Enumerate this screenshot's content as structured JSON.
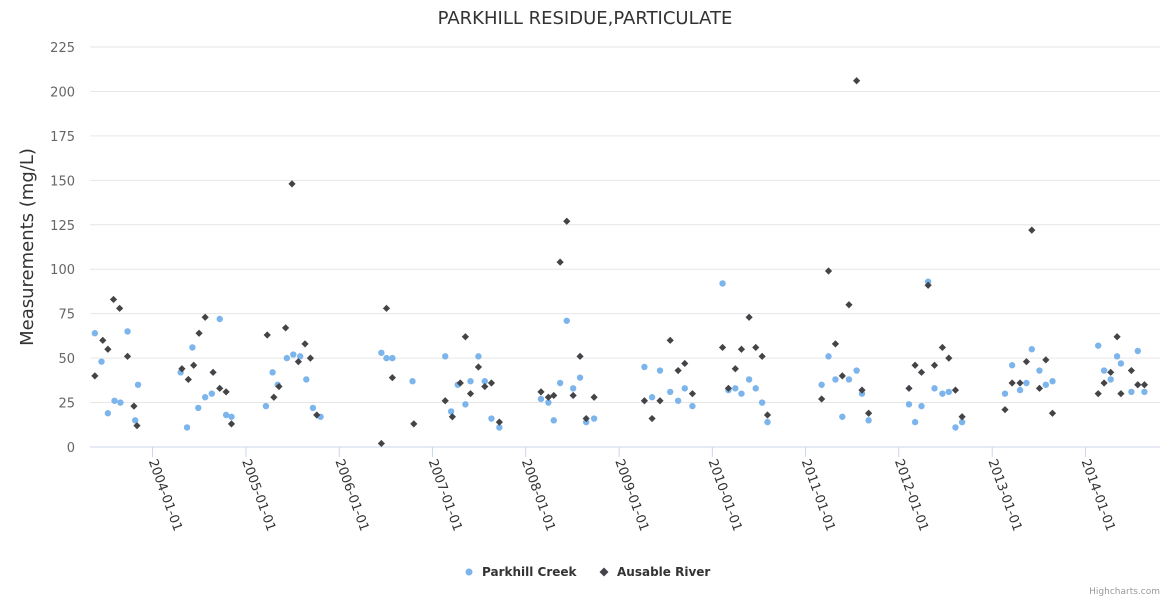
{
  "chart_data": {
    "type": "scatter",
    "title": "PARKHILL RESIDUE,PARTICULATE",
    "ylabel": "Measurements (mg/L)",
    "xlabel": "",
    "ylim": [
      0,
      225
    ],
    "xlim": [
      "2003-05-01",
      "2014-10-20"
    ],
    "x_axis_type": "datetime",
    "yticks": [
      0,
      25,
      50,
      75,
      100,
      125,
      150,
      175,
      200,
      225
    ],
    "xticks": [
      "2004-01-01",
      "2005-01-01",
      "2006-01-01",
      "2007-01-01",
      "2008-01-01",
      "2009-01-01",
      "2010-01-01",
      "2011-01-01",
      "2012-01-01",
      "2013-01-01",
      "2014-01-01"
    ],
    "grid": true,
    "legend_position": "bottom-center",
    "series": [
      {
        "name": "Parkhill Creek",
        "color": "#7cb5ec",
        "marker": "circle",
        "points": [
          [
            "2003-05-20",
            64
          ],
          [
            "2003-06-15",
            48
          ],
          [
            "2003-07-10",
            19
          ],
          [
            "2003-08-05",
            26
          ],
          [
            "2003-08-28",
            25
          ],
          [
            "2003-09-25",
            65
          ],
          [
            "2003-10-25",
            15
          ],
          [
            "2003-11-05",
            35
          ],
          [
            "2004-04-20",
            42
          ],
          [
            "2004-05-15",
            11
          ],
          [
            "2004-06-05",
            56
          ],
          [
            "2004-06-28",
            22
          ],
          [
            "2004-07-25",
            28
          ],
          [
            "2004-08-20",
            30
          ],
          [
            "2004-09-20",
            72
          ],
          [
            "2004-10-15",
            18
          ],
          [
            "2004-11-05",
            17
          ],
          [
            "2005-03-20",
            23
          ],
          [
            "2005-04-15",
            42
          ],
          [
            "2005-05-05",
            35
          ],
          [
            "2005-06-10",
            50
          ],
          [
            "2005-07-05",
            52
          ],
          [
            "2005-08-01",
            51
          ],
          [
            "2005-08-25",
            38
          ],
          [
            "2005-09-20",
            22
          ],
          [
            "2005-10-20",
            17
          ],
          [
            "2006-06-15",
            53
          ],
          [
            "2006-07-05",
            50
          ],
          [
            "2006-07-28",
            50
          ],
          [
            "2006-10-15",
            37
          ],
          [
            "2007-02-20",
            51
          ],
          [
            "2007-03-15",
            20
          ],
          [
            "2007-04-10",
            35
          ],
          [
            "2007-05-10",
            24
          ],
          [
            "2007-05-30",
            37
          ],
          [
            "2007-06-30",
            51
          ],
          [
            "2007-07-25",
            37
          ],
          [
            "2007-08-20",
            16
          ],
          [
            "2007-09-20",
            11
          ],
          [
            "2008-03-01",
            27
          ],
          [
            "2008-03-30",
            25
          ],
          [
            "2008-04-20",
            15
          ],
          [
            "2008-05-15",
            36
          ],
          [
            "2008-06-10",
            71
          ],
          [
            "2008-07-05",
            33
          ],
          [
            "2008-08-01",
            39
          ],
          [
            "2008-08-25",
            14
          ],
          [
            "2008-09-25",
            16
          ],
          [
            "2009-04-10",
            45
          ],
          [
            "2009-05-10",
            28
          ],
          [
            "2009-06-10",
            43
          ],
          [
            "2009-07-20",
            31
          ],
          [
            "2009-08-20",
            26
          ],
          [
            "2009-09-15",
            33
          ],
          [
            "2009-10-15",
            23
          ],
          [
            "2010-02-10",
            92
          ],
          [
            "2010-03-05",
            32
          ],
          [
            "2010-04-01",
            33
          ],
          [
            "2010-04-25",
            30
          ],
          [
            "2010-05-25",
            38
          ],
          [
            "2010-06-20",
            33
          ],
          [
            "2010-07-15",
            25
          ],
          [
            "2010-08-05",
            14
          ],
          [
            "2011-03-05",
            35
          ],
          [
            "2011-04-01",
            51
          ],
          [
            "2011-04-28",
            38
          ],
          [
            "2011-05-25",
            17
          ],
          [
            "2011-06-20",
            38
          ],
          [
            "2011-07-20",
            43
          ],
          [
            "2011-08-10",
            30
          ],
          [
            "2011-09-05",
            15
          ],
          [
            "2012-02-10",
            24
          ],
          [
            "2012-03-05",
            14
          ],
          [
            "2012-03-30",
            23
          ],
          [
            "2012-04-25",
            93
          ],
          [
            "2012-05-20",
            33
          ],
          [
            "2012-06-20",
            30
          ],
          [
            "2012-07-15",
            31
          ],
          [
            "2012-08-10",
            11
          ],
          [
            "2012-09-05",
            14
          ],
          [
            "2013-02-20",
            30
          ],
          [
            "2013-03-20",
            46
          ],
          [
            "2013-04-20",
            32
          ],
          [
            "2013-05-15",
            36
          ],
          [
            "2013-06-05",
            55
          ],
          [
            "2013-07-05",
            43
          ],
          [
            "2013-07-30",
            35
          ],
          [
            "2013-08-25",
            37
          ],
          [
            "2014-02-20",
            57
          ],
          [
            "2014-03-15",
            43
          ],
          [
            "2014-04-10",
            38
          ],
          [
            "2014-05-05",
            51
          ],
          [
            "2014-05-20",
            47
          ],
          [
            "2014-06-30",
            31
          ],
          [
            "2014-07-25",
            54
          ],
          [
            "2014-08-20",
            31
          ]
        ]
      },
      {
        "name": "Ausable River",
        "color": "#434348",
        "marker": "diamond",
        "points": [
          [
            "2003-05-20",
            40
          ],
          [
            "2003-06-20",
            60
          ],
          [
            "2003-07-10",
            55
          ],
          [
            "2003-08-01",
            83
          ],
          [
            "2003-08-25",
            78
          ],
          [
            "2003-09-25",
            51
          ],
          [
            "2003-10-20",
            23
          ],
          [
            "2003-11-01",
            12
          ],
          [
            "2004-04-25",
            44
          ],
          [
            "2004-05-20",
            38
          ],
          [
            "2004-06-10",
            46
          ],
          [
            "2004-07-01",
            64
          ],
          [
            "2004-07-25",
            73
          ],
          [
            "2004-08-25",
            42
          ],
          [
            "2004-09-20",
            33
          ],
          [
            "2004-10-15",
            31
          ],
          [
            "2004-11-05",
            13
          ],
          [
            "2005-03-25",
            63
          ],
          [
            "2005-04-20",
            28
          ],
          [
            "2005-05-10",
            34
          ],
          [
            "2005-06-05",
            67
          ],
          [
            "2005-06-30",
            148
          ],
          [
            "2005-07-25",
            48
          ],
          [
            "2005-08-20",
            58
          ],
          [
            "2005-09-10",
            50
          ],
          [
            "2005-10-05",
            18
          ],
          [
            "2006-06-15",
            2
          ],
          [
            "2006-07-05",
            78
          ],
          [
            "2006-07-28",
            39
          ],
          [
            "2006-10-20",
            13
          ],
          [
            "2007-02-20",
            26
          ],
          [
            "2007-03-20",
            17
          ],
          [
            "2007-04-20",
            36
          ],
          [
            "2007-05-10",
            62
          ],
          [
            "2007-05-30",
            30
          ],
          [
            "2007-06-30",
            45
          ],
          [
            "2007-07-25",
            34
          ],
          [
            "2007-08-20",
            36
          ],
          [
            "2007-09-20",
            14
          ],
          [
            "2008-03-01",
            31
          ],
          [
            "2008-03-30",
            28
          ],
          [
            "2008-04-20",
            29
          ],
          [
            "2008-05-15",
            104
          ],
          [
            "2008-06-10",
            127
          ],
          [
            "2008-07-05",
            29
          ],
          [
            "2008-08-01",
            51
          ],
          [
            "2008-08-25",
            16
          ],
          [
            "2008-09-25",
            28
          ],
          [
            "2009-04-10",
            26
          ],
          [
            "2009-05-10",
            16
          ],
          [
            "2009-06-10",
            26
          ],
          [
            "2009-07-20",
            60
          ],
          [
            "2009-08-20",
            43
          ],
          [
            "2009-09-15",
            47
          ],
          [
            "2009-10-15",
            30
          ],
          [
            "2010-02-10",
            56
          ],
          [
            "2010-03-05",
            33
          ],
          [
            "2010-04-01",
            44
          ],
          [
            "2010-04-25",
            55
          ],
          [
            "2010-05-25",
            73
          ],
          [
            "2010-06-20",
            56
          ],
          [
            "2010-07-15",
            51
          ],
          [
            "2010-08-05",
            18
          ],
          [
            "2011-03-05",
            27
          ],
          [
            "2011-04-01",
            99
          ],
          [
            "2011-04-28",
            58
          ],
          [
            "2011-05-25",
            40
          ],
          [
            "2011-06-20",
            80
          ],
          [
            "2011-07-20",
            206
          ],
          [
            "2011-08-10",
            32
          ],
          [
            "2011-09-05",
            19
          ],
          [
            "2012-02-10",
            33
          ],
          [
            "2012-03-05",
            46
          ],
          [
            "2012-03-30",
            42
          ],
          [
            "2012-04-25",
            91
          ],
          [
            "2012-05-20",
            46
          ],
          [
            "2012-06-20",
            56
          ],
          [
            "2012-07-15",
            50
          ],
          [
            "2012-08-10",
            32
          ],
          [
            "2012-09-05",
            17
          ],
          [
            "2013-02-20",
            21
          ],
          [
            "2013-03-20",
            36
          ],
          [
            "2013-04-20",
            36
          ],
          [
            "2013-05-15",
            48
          ],
          [
            "2013-06-05",
            122
          ],
          [
            "2013-07-05",
            33
          ],
          [
            "2013-07-30",
            49
          ],
          [
            "2013-08-25",
            19
          ],
          [
            "2014-02-20",
            30
          ],
          [
            "2014-03-15",
            36
          ],
          [
            "2014-04-10",
            42
          ],
          [
            "2014-05-05",
            62
          ],
          [
            "2014-05-20",
            30
          ],
          [
            "2014-06-30",
            43
          ],
          [
            "2014-07-25",
            35
          ],
          [
            "2014-08-20",
            35
          ]
        ]
      }
    ]
  },
  "legend": {
    "items": [
      {
        "label": "Parkhill Creek",
        "color": "#7cb5ec",
        "marker": "circle"
      },
      {
        "label": "Ausable River",
        "color": "#434348",
        "marker": "diamond"
      }
    ]
  },
  "credits": "Highcharts.com",
  "colors": {
    "gridline": "#e6e6e6",
    "axis_line": "#ccd6eb",
    "text": "#333333",
    "tick_text": "#666666"
  }
}
